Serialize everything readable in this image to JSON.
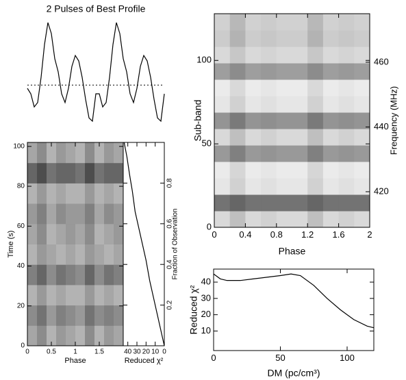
{
  "chart_data": [
    {
      "type": "line",
      "title": "2 Pulses of Best Profile",
      "frame": false,
      "x": [
        0,
        0.05,
        0.1,
        0.15,
        0.2,
        0.25,
        0.3,
        0.35,
        0.4,
        0.45,
        0.5,
        0.55,
        0.6,
        0.65,
        0.7,
        0.75,
        0.8,
        0.85,
        0.9,
        0.95,
        1,
        1.05,
        1.1,
        1.15,
        1.2,
        1.25,
        1.3,
        1.35,
        1.4,
        1.45,
        1.5,
        1.55,
        1.6,
        1.65,
        1.7,
        1.75,
        1.8,
        1.85,
        1.9,
        1.95,
        2
      ],
      "values": [
        0.35,
        0.3,
        0.18,
        0.22,
        0.45,
        0.75,
        0.95,
        0.85,
        0.62,
        0.5,
        0.3,
        0.22,
        0.35,
        0.55,
        0.65,
        0.6,
        0.45,
        0.25,
        0.08,
        0.05,
        0.3,
        0.3,
        0.18,
        0.22,
        0.45,
        0.75,
        0.95,
        0.85,
        0.62,
        0.5,
        0.3,
        0.22,
        0.35,
        0.55,
        0.65,
        0.6,
        0.45,
        0.25,
        0.08,
        0.05,
        0.3
      ],
      "reference_line": 0.38,
      "color": "#000000",
      "xlim": [
        0,
        2
      ],
      "ylim": [
        0,
        1
      ]
    },
    {
      "type": "heatmap",
      "xlabel": "Phase",
      "ylabel": "Time (s)",
      "frame": true,
      "xlim": [
        0,
        2
      ],
      "ylim": [
        0,
        102
      ],
      "xticks": [
        0,
        0.5,
        1,
        1.5
      ],
      "yticks": [
        0,
        20,
        40,
        60,
        80,
        100
      ],
      "z": [
        [
          0.35,
          0.45,
          0.3,
          0.4,
          0.35,
          0.3,
          0.45,
          0.3,
          0.4,
          0.35
        ],
        [
          0.45,
          0.55,
          0.4,
          0.5,
          0.45,
          0.4,
          0.55,
          0.45,
          0.5,
          0.45
        ],
        [
          0.3,
          0.4,
          0.3,
          0.35,
          0.3,
          0.3,
          0.4,
          0.3,
          0.35,
          0.3
        ],
        [
          0.5,
          0.6,
          0.45,
          0.55,
          0.5,
          0.45,
          0.6,
          0.45,
          0.55,
          0.5
        ],
        [
          0.3,
          0.4,
          0.35,
          0.3,
          0.35,
          0.3,
          0.4,
          0.35,
          0.3,
          0.35
        ],
        [
          0.35,
          0.45,
          0.3,
          0.35,
          0.4,
          0.35,
          0.45,
          0.3,
          0.35,
          0.4
        ],
        [
          0.4,
          0.5,
          0.35,
          0.45,
          0.4,
          0.4,
          0.5,
          0.35,
          0.45,
          0.4
        ],
        [
          0.3,
          0.4,
          0.3,
          0.35,
          0.3,
          0.3,
          0.4,
          0.3,
          0.35,
          0.3
        ],
        [
          0.6,
          0.7,
          0.55,
          0.6,
          0.6,
          0.55,
          0.7,
          0.55,
          0.6,
          0.6
        ],
        [
          0.35,
          0.45,
          0.3,
          0.4,
          0.35,
          0.3,
          0.45,
          0.3,
          0.4,
          0.35
        ]
      ]
    },
    {
      "type": "line",
      "xlabel": "Reduced χ²",
      "y2label": "Fraction of Observation",
      "frame": true,
      "color": "#000000",
      "x": [
        0,
        4,
        8,
        12,
        16,
        20,
        24,
        28,
        32,
        35,
        38,
        41,
        44
      ],
      "values": [
        0,
        0.08,
        0.16,
        0.24,
        0.32,
        0.42,
        0.5,
        0.58,
        0.66,
        0.76,
        0.84,
        0.93,
        1
      ],
      "xlim": [
        45,
        0
      ],
      "ylim": [
        0,
        1
      ],
      "xticks": [
        40,
        30,
        20,
        10,
        0
      ],
      "yticks": [
        0.2,
        0.4,
        0.6,
        0.8
      ]
    },
    {
      "type": "heatmap",
      "xlabel": "Phase",
      "ylabel": "Sub-band",
      "y2label": "Frequency (MHz)",
      "frame": true,
      "xlim": [
        0,
        2
      ],
      "ylim": [
        0,
        128
      ],
      "y2lim": [
        409,
        475
      ],
      "xticks": [
        0,
        0.4,
        0.8,
        1.2,
        1.6,
        2
      ],
      "yticks": [
        0,
        50,
        100
      ],
      "y2ticks": [
        420,
        440,
        460
      ],
      "z": [
        [
          0.15,
          0.25,
          0.15,
          0.18,
          0.15,
          0.15,
          0.25,
          0.15,
          0.18,
          0.15
        ],
        [
          0.55,
          0.6,
          0.55,
          0.55,
          0.55,
          0.55,
          0.6,
          0.55,
          0.55,
          0.55
        ],
        [
          0.1,
          0.18,
          0.1,
          0.12,
          0.1,
          0.1,
          0.18,
          0.1,
          0.12,
          0.1
        ],
        [
          0.08,
          0.16,
          0.08,
          0.1,
          0.08,
          0.08,
          0.16,
          0.08,
          0.1,
          0.08
        ],
        [
          0.4,
          0.5,
          0.4,
          0.42,
          0.4,
          0.4,
          0.5,
          0.4,
          0.42,
          0.4
        ],
        [
          0.15,
          0.25,
          0.15,
          0.18,
          0.15,
          0.15,
          0.25,
          0.15,
          0.18,
          0.15
        ],
        [
          0.42,
          0.52,
          0.42,
          0.44,
          0.42,
          0.42,
          0.52,
          0.42,
          0.44,
          0.42
        ],
        [
          0.1,
          0.18,
          0.1,
          0.12,
          0.1,
          0.1,
          0.18,
          0.1,
          0.12,
          0.1
        ],
        [
          0.08,
          0.15,
          0.08,
          0.1,
          0.08,
          0.08,
          0.15,
          0.08,
          0.1,
          0.08
        ],
        [
          0.38,
          0.45,
          0.38,
          0.4,
          0.38,
          0.38,
          0.45,
          0.38,
          0.4,
          0.38
        ],
        [
          0.15,
          0.22,
          0.15,
          0.17,
          0.15,
          0.15,
          0.22,
          0.15,
          0.17,
          0.15
        ],
        [
          0.2,
          0.3,
          0.2,
          0.22,
          0.2,
          0.2,
          0.3,
          0.2,
          0.22,
          0.2
        ],
        [
          0.18,
          0.28,
          0.18,
          0.2,
          0.18,
          0.18,
          0.28,
          0.18,
          0.2,
          0.18
        ]
      ]
    },
    {
      "type": "line",
      "xlabel": "DM (pc/cm³)",
      "ylabel": "Reduced χ²",
      "frame": true,
      "color": "#000000",
      "x": [
        0,
        5,
        10,
        20,
        30,
        40,
        50,
        58,
        65,
        75,
        85,
        95,
        105,
        115,
        120
      ],
      "values": [
        45,
        42,
        41,
        41,
        42,
        43,
        44,
        45,
        44,
        38,
        30,
        23,
        17,
        13,
        12
      ],
      "xlim": [
        0,
        120
      ],
      "ylim": [
        -2,
        48
      ],
      "xticks": [
        0,
        50,
        100
      ],
      "yticks": [
        10,
        20,
        30,
        40
      ]
    }
  ]
}
